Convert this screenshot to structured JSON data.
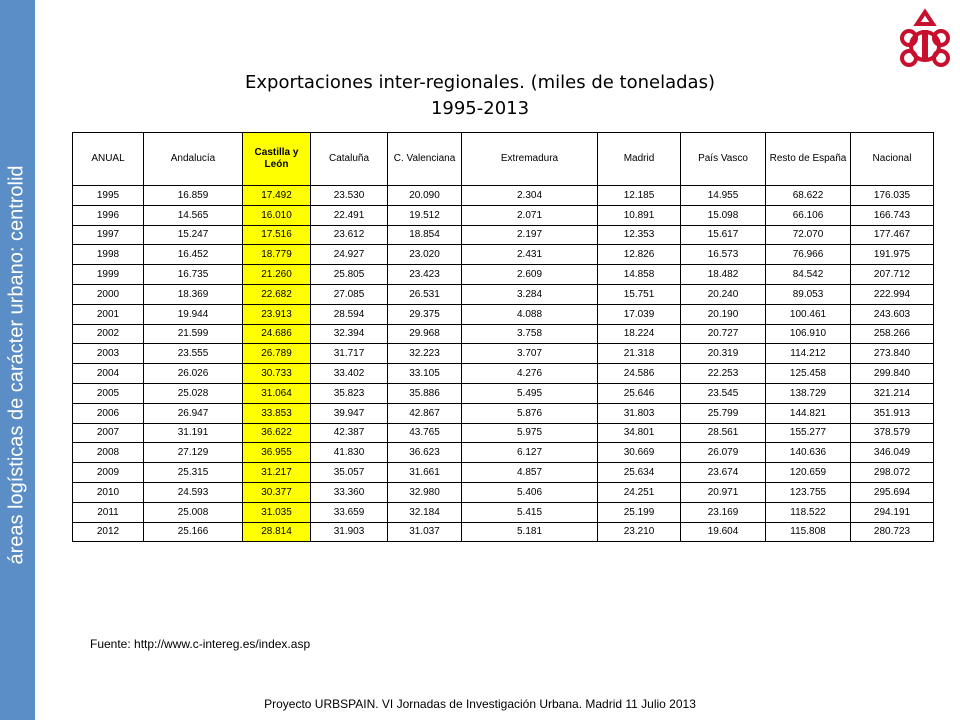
{
  "sidebar": "áreas logísticas de carácter urbano: centrolid",
  "title": {
    "line1": "Exportaciones inter-regionales. (miles de toneladas)",
    "line2": "1995-2013"
  },
  "table": {
    "header": [
      "ANUAL",
      "Andalucía",
      "Castilla y León",
      "Cataluña",
      "C. Valenciana",
      "Extremadura",
      "Madrid",
      "País Vasco",
      "Resto de España",
      "Nacional"
    ],
    "rows": [
      [
        "1995",
        "16.859",
        "17.492",
        "23.530",
        "20.090",
        "2.304",
        "12.185",
        "14.955",
        "68.622",
        "176.035"
      ],
      [
        "1996",
        "14.565",
        "16.010",
        "22.491",
        "19.512",
        "2.071",
        "10.891",
        "15.098",
        "66.106",
        "166.743"
      ],
      [
        "1997",
        "15.247",
        "17.516",
        "23.612",
        "18.854",
        "2.197",
        "12.353",
        "15.617",
        "72.070",
        "177.467"
      ],
      [
        "1998",
        "16.452",
        "18.779",
        "24.927",
        "23.020",
        "2.431",
        "12.826",
        "16.573",
        "76.966",
        "191.975"
      ],
      [
        "1999",
        "16.735",
        "21.260",
        "25.805",
        "23.423",
        "2.609",
        "14.858",
        "18.482",
        "84.542",
        "207.712"
      ],
      [
        "2000",
        "18.369",
        "22.682",
        "27.085",
        "26.531",
        "3.284",
        "15.751",
        "20.240",
        "89.053",
        "222.994"
      ],
      [
        "2001",
        "19.944",
        "23.913",
        "28.594",
        "29.375",
        "4.088",
        "17.039",
        "20.190",
        "100.461",
        "243.603"
      ],
      [
        "2002",
        "21.599",
        "24.686",
        "32.394",
        "29.968",
        "3.758",
        "18.224",
        "20.727",
        "106.910",
        "258.266"
      ],
      [
        "2003",
        "23.555",
        "26.789",
        "31.717",
        "32.223",
        "3.707",
        "21.318",
        "20.319",
        "114.212",
        "273.840"
      ],
      [
        "2004",
        "26.026",
        "30.733",
        "33.402",
        "33.105",
        "4.276",
        "24.586",
        "22.253",
        "125.458",
        "299.840"
      ],
      [
        "2005",
        "25.028",
        "31.064",
        "35.823",
        "35.886",
        "5.495",
        "25.646",
        "23.545",
        "138.729",
        "321.214"
      ],
      [
        "2006",
        "26.947",
        "33.853",
        "39.947",
        "42.867",
        "5.876",
        "31.803",
        "25.799",
        "144.821",
        "351.913"
      ],
      [
        "2007",
        "31.191",
        "36.622",
        "42.387",
        "43.765",
        "5.975",
        "34.801",
        "28.561",
        "155.277",
        "378.579"
      ],
      [
        "2008",
        "27.129",
        "36.955",
        "41.830",
        "36.623",
        "6.127",
        "30.669",
        "26.079",
        "140.636",
        "346.049"
      ],
      [
        "2009",
        "25.315",
        "31.217",
        "35.057",
        "31.661",
        "4.857",
        "25.634",
        "23.674",
        "120.659",
        "298.072"
      ],
      [
        "2010",
        "24.593",
        "30.377",
        "33.360",
        "32.980",
        "5.406",
        "24.251",
        "20.971",
        "123.755",
        "295.694"
      ],
      [
        "2011",
        "25.008",
        "31.035",
        "33.659",
        "32.184",
        "5.415",
        "25.199",
        "23.169",
        "118.522",
        "294.191"
      ],
      [
        "2012",
        "25.166",
        "28.814",
        "31.903",
        "31.037",
        "5.181",
        "23.210",
        "19.604",
        "115.808",
        "280.723"
      ]
    ]
  },
  "source": "Fuente: http://www.c-intereg.es/index.asp",
  "footer": "Proyecto URBSPAIN. VI  Jornadas de Investigación Urbana. Madrid 11 Julio 2013"
}
